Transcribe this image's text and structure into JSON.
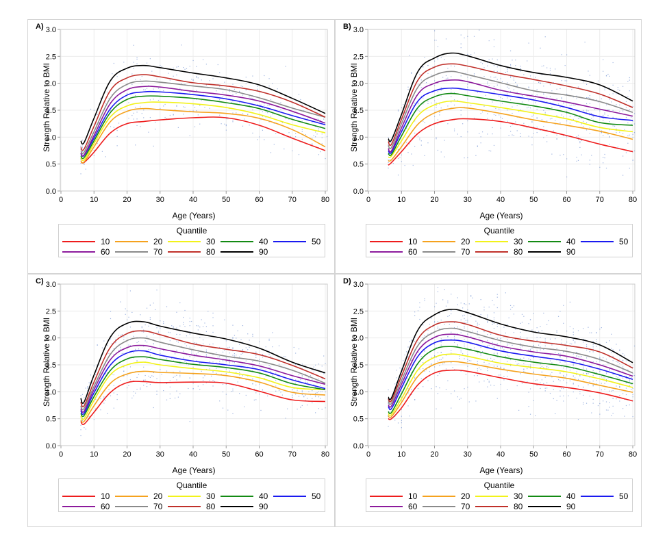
{
  "chart_data": [
    {
      "type": "line",
      "panel_label": "A)",
      "xlabel": "Age (Years)",
      "ylabel": "Strength Relative to BMI",
      "xlim": [
        0,
        80
      ],
      "ylim": [
        0.0,
        3.0
      ],
      "xticks": [
        "0",
        "10",
        "20",
        "30",
        "40",
        "50",
        "60",
        "70",
        "80"
      ],
      "yticks": [
        "0.0",
        "0.5",
        "1.0",
        "1.5",
        "2.0",
        "2.5",
        "3.0"
      ],
      "grid": true,
      "scatter": true,
      "x": [
        6,
        7,
        10,
        15,
        20,
        25,
        30,
        40,
        50,
        60,
        70,
        80
      ],
      "series": [
        {
          "name": "10",
          "values": [
            0.55,
            0.53,
            0.72,
            1.08,
            1.25,
            1.29,
            1.32,
            1.36,
            1.36,
            1.22,
            0.98,
            0.75
          ]
        },
        {
          "name": "20",
          "values": [
            0.56,
            0.54,
            0.82,
            1.29,
            1.48,
            1.53,
            1.51,
            1.47,
            1.44,
            1.35,
            1.14,
            0.82
          ]
        },
        {
          "name": "30",
          "values": [
            0.62,
            0.58,
            0.88,
            1.38,
            1.58,
            1.64,
            1.65,
            1.62,
            1.55,
            1.42,
            1.23,
            1.08
          ]
        },
        {
          "name": "40",
          "values": [
            0.65,
            0.62,
            0.93,
            1.46,
            1.7,
            1.76,
            1.76,
            1.72,
            1.64,
            1.53,
            1.33,
            1.16
          ]
        },
        {
          "name": "50",
          "values": [
            0.7,
            0.66,
            0.98,
            1.53,
            1.78,
            1.84,
            1.84,
            1.79,
            1.71,
            1.58,
            1.4,
            1.23
          ]
        },
        {
          "name": "60",
          "values": [
            0.71,
            0.67,
            1.03,
            1.63,
            1.88,
            1.94,
            1.93,
            1.85,
            1.78,
            1.67,
            1.48,
            1.26
          ]
        },
        {
          "name": "70",
          "values": [
            0.75,
            0.72,
            1.1,
            1.73,
            1.98,
            2.04,
            2.02,
            1.95,
            1.88,
            1.73,
            1.54,
            1.37
          ]
        },
        {
          "name": "80",
          "values": [
            0.81,
            0.78,
            1.2,
            1.87,
            2.1,
            2.16,
            2.12,
            2.01,
            1.95,
            1.85,
            1.65,
            1.37
          ]
        },
        {
          "name": "90",
          "values": [
            0.93,
            0.9,
            1.35,
            2.05,
            2.28,
            2.33,
            2.29,
            2.19,
            2.1,
            1.97,
            1.72,
            1.44
          ]
        }
      ]
    },
    {
      "type": "line",
      "panel_label": "B)",
      "xlabel": "Age (Years)",
      "ylabel": "Strength Relative to BMI",
      "xlim": [
        0,
        80
      ],
      "ylim": [
        0.0,
        3.0
      ],
      "xticks": [
        "0",
        "10",
        "20",
        "30",
        "40",
        "50",
        "60",
        "70",
        "80"
      ],
      "yticks": [
        "0.0",
        "0.5",
        "1.0",
        "1.5",
        "2.0",
        "2.5",
        "3.0"
      ],
      "grid": true,
      "scatter": true,
      "x": [
        6,
        7,
        10,
        15,
        20,
        25,
        30,
        40,
        50,
        60,
        70,
        80
      ],
      "series": [
        {
          "name": "10",
          "values": [
            0.48,
            0.53,
            0.73,
            1.07,
            1.25,
            1.32,
            1.34,
            1.29,
            1.17,
            1.03,
            0.87,
            0.73
          ]
        },
        {
          "name": "20",
          "values": [
            0.56,
            0.58,
            0.82,
            1.24,
            1.45,
            1.53,
            1.54,
            1.44,
            1.32,
            1.22,
            1.11,
            0.96
          ]
        },
        {
          "name": "30",
          "values": [
            0.63,
            0.65,
            0.93,
            1.4,
            1.6,
            1.67,
            1.64,
            1.55,
            1.45,
            1.34,
            1.18,
            1.1
          ]
        },
        {
          "name": "40",
          "values": [
            0.7,
            0.68,
            1.02,
            1.55,
            1.75,
            1.81,
            1.77,
            1.67,
            1.58,
            1.46,
            1.27,
            1.22
          ]
        },
        {
          "name": "50",
          "values": [
            0.75,
            0.72,
            1.1,
            1.67,
            1.86,
            1.91,
            1.88,
            1.79,
            1.69,
            1.55,
            1.38,
            1.31
          ]
        },
        {
          "name": "60",
          "values": [
            0.79,
            0.75,
            1.17,
            1.8,
            2.0,
            2.06,
            2.03,
            1.87,
            1.76,
            1.65,
            1.52,
            1.39
          ]
        },
        {
          "name": "70",
          "values": [
            0.85,
            0.81,
            1.25,
            1.93,
            2.15,
            2.22,
            2.16,
            2.01,
            1.86,
            1.78,
            1.66,
            1.46
          ]
        },
        {
          "name": "80",
          "values": [
            0.92,
            0.87,
            1.33,
            2.06,
            2.3,
            2.36,
            2.32,
            2.18,
            2.07,
            1.95,
            1.8,
            1.55
          ]
        },
        {
          "name": "90",
          "values": [
            0.97,
            0.95,
            1.42,
            2.22,
            2.47,
            2.56,
            2.51,
            2.33,
            2.2,
            2.11,
            1.97,
            1.67
          ]
        }
      ]
    },
    {
      "type": "line",
      "panel_label": "C)",
      "xlabel": "Age (Years)",
      "ylabel": "Strength Relative to BMI",
      "xlim": [
        0,
        80
      ],
      "ylim": [
        0.0,
        3.0
      ],
      "xticks": [
        "0",
        "10",
        "20",
        "30",
        "40",
        "50",
        "60",
        "70",
        "80"
      ],
      "yticks": [
        "0.0",
        "0.5",
        "1.0",
        "1.5",
        "2.0",
        "2.5",
        "3.0"
      ],
      "grid": true,
      "scatter": true,
      "x": [
        6,
        7,
        10,
        15,
        20,
        25,
        30,
        40,
        50,
        60,
        70,
        80
      ],
      "series": [
        {
          "name": "10",
          "values": [
            0.45,
            0.4,
            0.62,
            0.99,
            1.17,
            1.19,
            1.17,
            1.18,
            1.16,
            1.01,
            0.85,
            0.82
          ]
        },
        {
          "name": "20",
          "values": [
            0.48,
            0.45,
            0.74,
            1.16,
            1.33,
            1.38,
            1.36,
            1.34,
            1.3,
            1.18,
            0.99,
            0.94
          ]
        },
        {
          "name": "30",
          "values": [
            0.55,
            0.5,
            0.84,
            1.32,
            1.5,
            1.55,
            1.5,
            1.43,
            1.37,
            1.26,
            1.08,
            1.04
          ]
        },
        {
          "name": "40",
          "values": [
            0.6,
            0.56,
            0.91,
            1.4,
            1.61,
            1.65,
            1.6,
            1.51,
            1.45,
            1.35,
            1.15,
            1.04
          ]
        },
        {
          "name": "50",
          "values": [
            0.65,
            0.6,
            0.98,
            1.5,
            1.72,
            1.76,
            1.68,
            1.57,
            1.5,
            1.41,
            1.22,
            1.06
          ]
        },
        {
          "name": "60",
          "values": [
            0.69,
            0.64,
            1.04,
            1.6,
            1.82,
            1.86,
            1.8,
            1.68,
            1.59,
            1.48,
            1.3,
            1.14
          ]
        },
        {
          "name": "70",
          "values": [
            0.74,
            0.69,
            1.1,
            1.7,
            1.95,
            2.0,
            1.92,
            1.78,
            1.66,
            1.57,
            1.4,
            1.16
          ]
        },
        {
          "name": "80",
          "values": [
            0.81,
            0.74,
            1.18,
            1.83,
            2.08,
            2.13,
            2.06,
            1.89,
            1.79,
            1.69,
            1.49,
            1.24
          ]
        },
        {
          "name": "90",
          "values": [
            0.88,
            0.81,
            1.31,
            2.02,
            2.27,
            2.3,
            2.22,
            2.09,
            1.98,
            1.81,
            1.55,
            1.35
          ]
        }
      ]
    },
    {
      "type": "line",
      "panel_label": "D)",
      "xlabel": "Age (Years)",
      "ylabel": "Strength Relative to BMI",
      "xlim": [
        0,
        80
      ],
      "ylim": [
        0.0,
        3.0
      ],
      "xticks": [
        "0",
        "10",
        "20",
        "30",
        "40",
        "50",
        "60",
        "70",
        "80"
      ],
      "yticks": [
        "0.0",
        "0.5",
        "1.0",
        "1.5",
        "2.0",
        "2.5",
        "3.0"
      ],
      "grid": true,
      "scatter": true,
      "x": [
        6,
        7,
        10,
        15,
        20,
        25,
        30,
        40,
        50,
        60,
        70,
        80
      ],
      "series": [
        {
          "name": "10",
          "values": [
            0.5,
            0.5,
            0.7,
            1.13,
            1.35,
            1.4,
            1.38,
            1.26,
            1.15,
            1.08,
            0.98,
            0.83
          ]
        },
        {
          "name": "20",
          "values": [
            0.55,
            0.54,
            0.8,
            1.29,
            1.51,
            1.56,
            1.53,
            1.42,
            1.33,
            1.25,
            1.12,
            0.99
          ]
        },
        {
          "name": "30",
          "values": [
            0.59,
            0.58,
            0.87,
            1.41,
            1.64,
            1.7,
            1.66,
            1.53,
            1.45,
            1.37,
            1.24,
            1.08
          ]
        },
        {
          "name": "40",
          "values": [
            0.63,
            0.62,
            0.96,
            1.53,
            1.79,
            1.84,
            1.79,
            1.65,
            1.55,
            1.47,
            1.32,
            1.15
          ]
        },
        {
          "name": "50",
          "values": [
            0.73,
            0.69,
            1.07,
            1.66,
            1.91,
            1.96,
            1.92,
            1.76,
            1.66,
            1.57,
            1.42,
            1.23
          ]
        },
        {
          "name": "60",
          "values": [
            0.76,
            0.74,
            1.14,
            1.76,
            2.01,
            2.07,
            2.02,
            1.85,
            1.74,
            1.66,
            1.5,
            1.29
          ]
        },
        {
          "name": "70",
          "values": [
            0.82,
            0.79,
            1.21,
            1.86,
            2.11,
            2.18,
            2.12,
            1.95,
            1.83,
            1.75,
            1.6,
            1.35
          ]
        },
        {
          "name": "80",
          "values": [
            0.87,
            0.84,
            1.29,
            1.98,
            2.24,
            2.3,
            2.25,
            2.05,
            1.94,
            1.86,
            1.74,
            1.44
          ]
        },
        {
          "name": "90",
          "values": [
            0.9,
            0.89,
            1.38,
            2.15,
            2.43,
            2.53,
            2.47,
            2.26,
            2.11,
            2.02,
            1.87,
            1.54
          ]
        }
      ]
    }
  ],
  "legend": {
    "title": "Quantile",
    "position": "bottom",
    "items": [
      {
        "label": "10",
        "color": "#ee1c1c"
      },
      {
        "label": "20",
        "color": "#f5a21e"
      },
      {
        "label": "30",
        "color": "#f2f21a"
      },
      {
        "label": "40",
        "color": "#138a13"
      },
      {
        "label": "50",
        "color": "#1a1af0"
      },
      {
        "label": "60",
        "color": "#8c1a9c"
      },
      {
        "label": "70",
        "color": "#8a8a8a"
      },
      {
        "label": "80",
        "color": "#c0302a"
      },
      {
        "label": "90",
        "color": "#000000"
      }
    ]
  },
  "colors": {
    "scatter": "#7d9bd6",
    "grid": "#ececec",
    "axis": "#c8c8c8"
  }
}
